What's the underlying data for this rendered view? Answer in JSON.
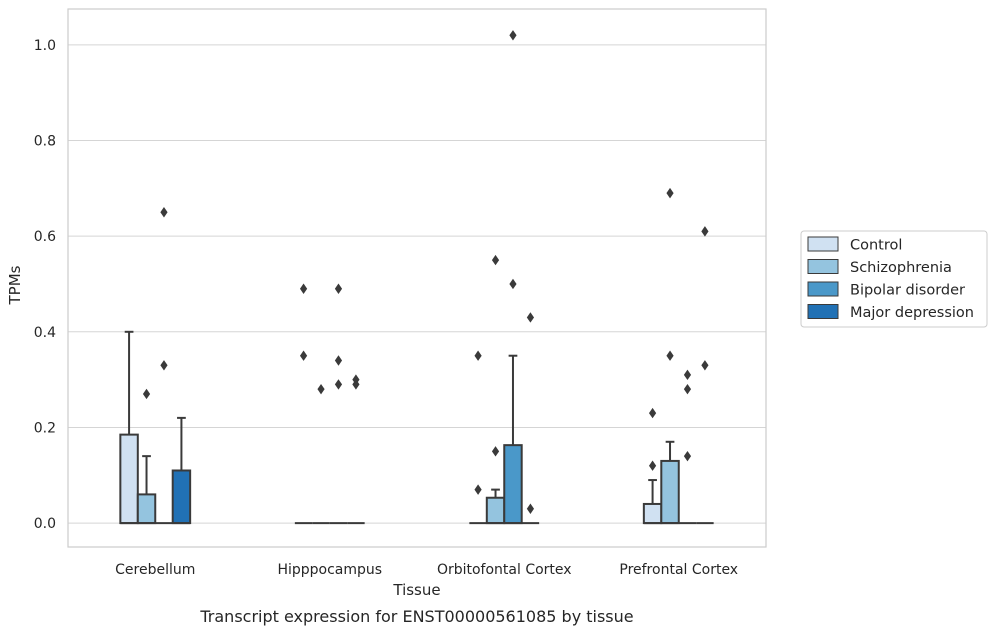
{
  "chart_data": {
    "type": "box",
    "xlabel": "Tissue",
    "ylabel": "TPMs",
    "caption": "Transcript expression for ENST00000561085 by tissue",
    "ylim": [
      -0.05,
      1.075
    ],
    "yticks": [
      "0.0",
      "0.2",
      "0.4",
      "0.6",
      "0.8",
      "1.0"
    ],
    "grid": "horizontal",
    "legend_position": "right",
    "categories": [
      "Cerebellum",
      "Hipppocampus",
      "Orbitofontal Cortex",
      "Prefrontal Cortex"
    ],
    "series": [
      {
        "name": "Control",
        "color": "#d0e1f2",
        "boxes": [
          {
            "q1": 0.0,
            "median": 0.0,
            "q3": 0.185,
            "whisker_low": 0.0,
            "whisker_high": 0.4,
            "outliers": []
          },
          {
            "q1": 0.0,
            "median": 0.0,
            "q3": 0.0,
            "whisker_low": 0.0,
            "whisker_high": 0.0,
            "outliers": [
              0.35,
              0.49
            ]
          },
          {
            "q1": 0.0,
            "median": 0.0,
            "q3": 0.0,
            "whisker_low": 0.0,
            "whisker_high": 0.0,
            "outliers": [
              0.07,
              0.35
            ]
          },
          {
            "q1": 0.0,
            "median": 0.0,
            "q3": 0.04,
            "whisker_low": 0.0,
            "whisker_high": 0.09,
            "outliers": [
              0.12,
              0.23
            ]
          }
        ]
      },
      {
        "name": "Schizophrenia",
        "color": "#94c4df",
        "boxes": [
          {
            "q1": 0.0,
            "median": 0.0,
            "q3": 0.06,
            "whisker_low": 0.0,
            "whisker_high": 0.14,
            "outliers": [
              0.27
            ]
          },
          {
            "q1": 0.0,
            "median": 0.0,
            "q3": 0.0,
            "whisker_low": 0.0,
            "whisker_high": 0.0,
            "outliers": [
              0.28
            ]
          },
          {
            "q1": 0.0,
            "median": 0.0,
            "q3": 0.053,
            "whisker_low": 0.0,
            "whisker_high": 0.07,
            "outliers": [
              0.15,
              0.55
            ]
          },
          {
            "q1": 0.0,
            "median": 0.0,
            "q3": 0.13,
            "whisker_low": 0.0,
            "whisker_high": 0.17,
            "outliers": [
              0.35,
              0.69
            ]
          }
        ]
      },
      {
        "name": "Bipolar disorder",
        "color": "#4a98c9",
        "boxes": [
          {
            "q1": 0.0,
            "median": 0.0,
            "q3": 0.0,
            "whisker_low": 0.0,
            "whisker_high": 0.0,
            "outliers": [
              0.33,
              0.65
            ]
          },
          {
            "q1": 0.0,
            "median": 0.0,
            "q3": 0.0,
            "whisker_low": 0.0,
            "whisker_high": 0.0,
            "outliers": [
              0.29,
              0.34,
              0.49
            ]
          },
          {
            "q1": 0.0,
            "median": 0.0,
            "q3": 0.163,
            "whisker_low": 0.0,
            "whisker_high": 0.35,
            "outliers": [
              0.5,
              1.02
            ]
          },
          {
            "q1": 0.0,
            "median": 0.0,
            "q3": 0.0,
            "whisker_low": 0.0,
            "whisker_high": 0.0,
            "outliers": [
              0.14,
              0.28,
              0.31
            ]
          }
        ]
      },
      {
        "name": "Major depression",
        "color": "#2171b5",
        "boxes": [
          {
            "q1": 0.0,
            "median": 0.0,
            "q3": 0.11,
            "whisker_low": 0.0,
            "whisker_high": 0.22,
            "outliers": []
          },
          {
            "q1": 0.0,
            "median": 0.0,
            "q3": 0.0,
            "whisker_low": 0.0,
            "whisker_high": 0.0,
            "outliers": [
              0.29,
              0.3
            ]
          },
          {
            "q1": 0.0,
            "median": 0.0,
            "q3": 0.0,
            "whisker_low": 0.0,
            "whisker_high": 0.0,
            "outliers": [
              0.03,
              0.43
            ]
          },
          {
            "q1": 0.0,
            "median": 0.0,
            "q3": 0.0,
            "whisker_low": 0.0,
            "whisker_high": 0.0,
            "outliers": [
              0.33,
              0.61
            ]
          }
        ]
      }
    ],
    "colors": {
      "edge": "#3a3a3a",
      "grid": "#d5d5d5",
      "frame": "#cccccc",
      "outlier": "#3a3a3a"
    }
  }
}
